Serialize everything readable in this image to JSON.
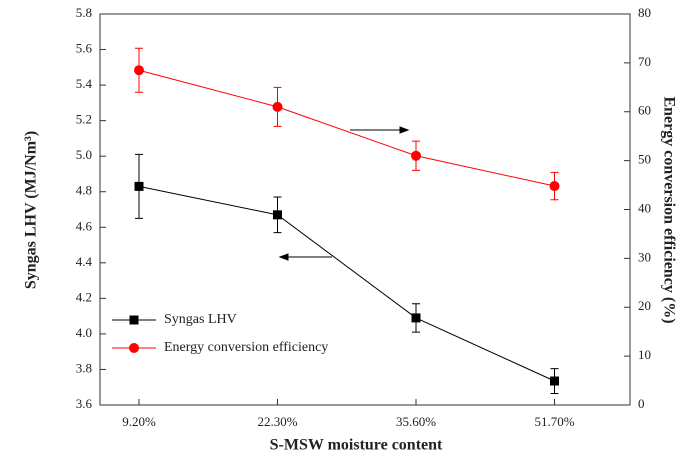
{
  "chart_data": {
    "type": "line",
    "categories": [
      "9.20%",
      "22.30%",
      "35.60%",
      "51.70%"
    ],
    "x_label": "S-MSW moisture content",
    "y_label": "Syngas LHV (MJ/Nm³)",
    "y2_label": "Energy conversion efficiency (%)",
    "ylim": [
      3.6,
      5.8
    ],
    "yticks": [
      3.6,
      3.8,
      {
        "value": 4.0,
        "label": "4.0"
      },
      4.2,
      4.4,
      4.6,
      4.8,
      {
        "value": 5.0,
        "label": "5.0"
      },
      5.2,
      5.4,
      5.6,
      5.8
    ],
    "y2lim": [
      0,
      80
    ],
    "y2ticks": [
      0,
      10,
      20,
      30,
      40,
      50,
      60,
      70,
      80
    ],
    "legend": "lower-left",
    "series": [
      {
        "name": "Syngas LHV",
        "color": "#000000",
        "marker": "square",
        "values": [
          4.83,
          4.67,
          4.09,
          3.735
        ],
        "errors": [
          0.18,
          0.1,
          0.08,
          0.07
        ]
      },
      {
        "name": "Energy conversion efficiency",
        "color": "#ff0000",
        "marker": "circle",
        "axis": "y2",
        "values": [
          68.5,
          61,
          51,
          44.8
        ],
        "errors": [
          4.5,
          4,
          3,
          2.8
        ]
      }
    ]
  }
}
